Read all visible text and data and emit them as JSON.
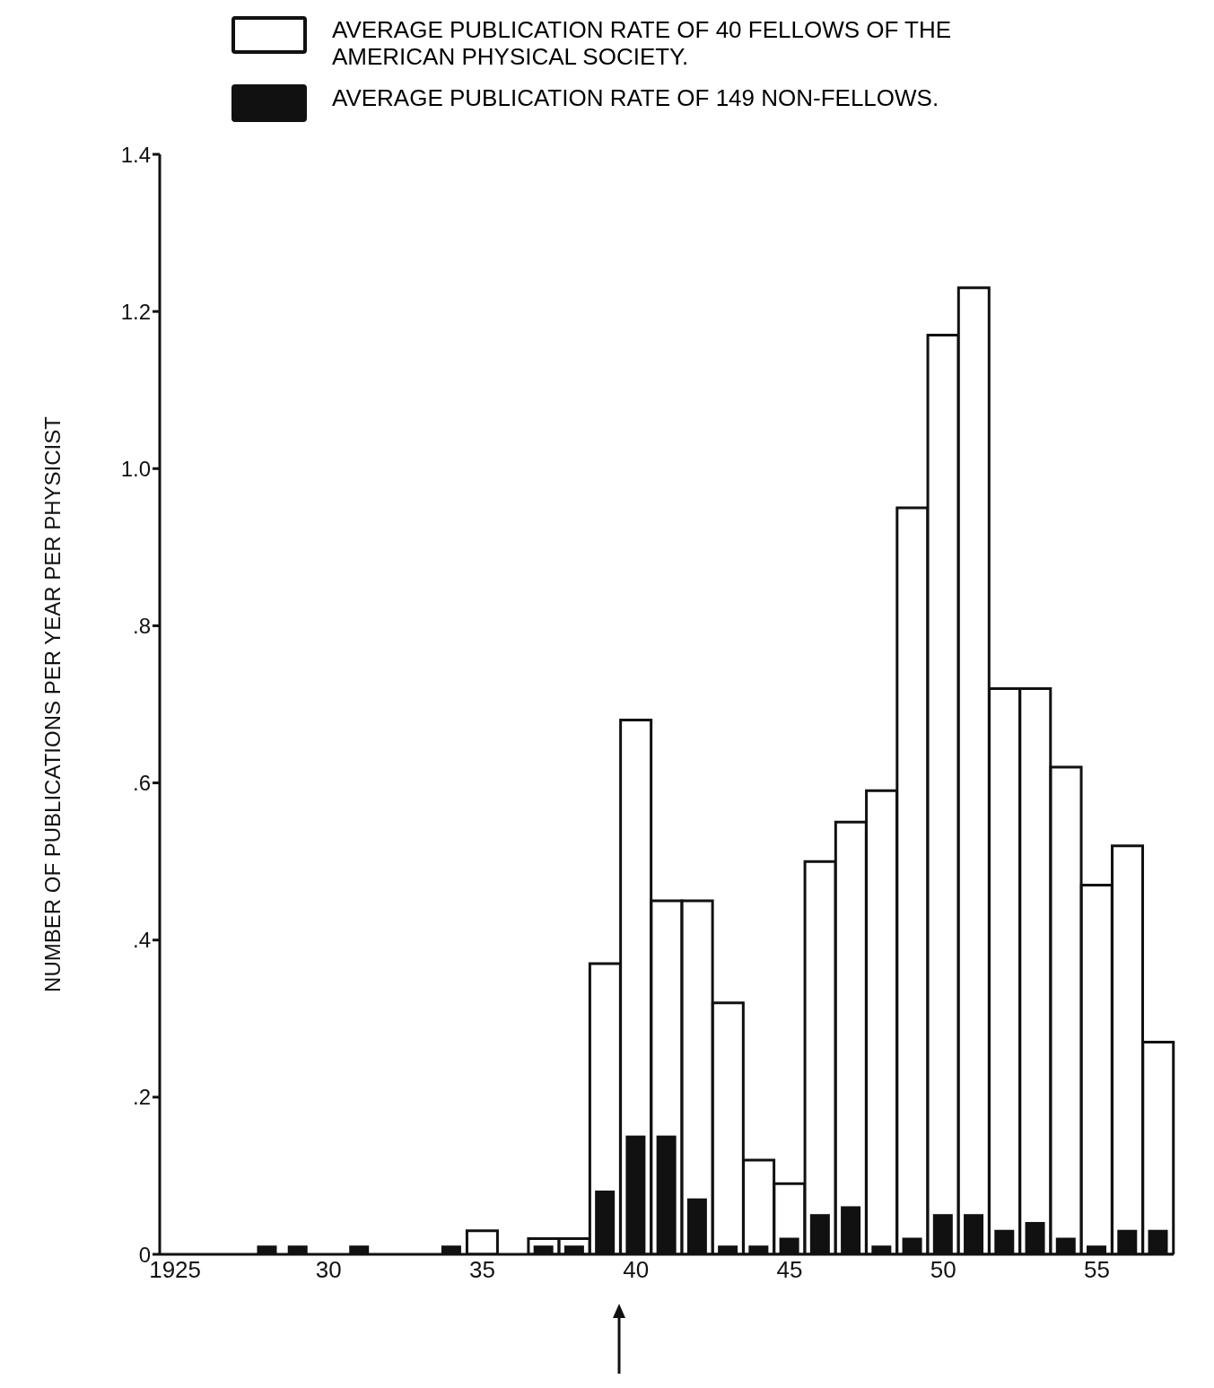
{
  "chart_data": {
    "type": "bar",
    "ylabel": "NUMBER OF PUBLICATIONS PER YEAR PER PHYSICIST",
    "categories": [
      "1925",
      null,
      null,
      null,
      null,
      "30",
      null,
      null,
      null,
      null,
      "35",
      null,
      null,
      null,
      null,
      "40",
      null,
      null,
      null,
      null,
      "45",
      null,
      null,
      null,
      null,
      "50",
      null,
      null,
      null,
      null,
      "55",
      null,
      null
    ],
    "series": [
      {
        "name": "AVERAGE PUBLICATION RATE OF 40 FELLOWS OF THE AMERICAN PHYSICAL SOCIETY.",
        "color": "#ffffff",
        "values": [
          null,
          null,
          null,
          null,
          null,
          null,
          null,
          null,
          null,
          null,
          0.03,
          null,
          0.02,
          0.02,
          0.37,
          0.68,
          0.45,
          0.45,
          0.32,
          0.12,
          0.09,
          0.5,
          0.55,
          0.59,
          0.95,
          1.17,
          1.23,
          0.72,
          0.72,
          0.62,
          0.47,
          0.52,
          0.27
        ]
      },
      {
        "name": "AVERAGE PUBLICATION RATE OF 149 NON-FELLOWS.",
        "color": "#111111",
        "values": [
          null,
          null,
          null,
          0.01,
          0.01,
          null,
          0.01,
          null,
          null,
          0.01,
          null,
          null,
          0.01,
          0.01,
          0.08,
          0.15,
          0.15,
          0.07,
          0.01,
          0.01,
          0.02,
          0.05,
          0.06,
          0.01,
          0.02,
          0.05,
          0.05,
          0.03,
          0.04,
          0.02,
          0.01,
          0.03,
          0.03
        ]
      }
    ],
    "ylim": [
      0,
      1.4
    ],
    "yticks": [
      {
        "value": 0,
        "label": "0"
      },
      {
        "value": 0.2,
        "label": ".2"
      },
      {
        "value": 0.4,
        "label": ".4"
      },
      {
        "value": 0.6,
        "label": ".6"
      },
      {
        "value": 0.8,
        "label": ".8"
      },
      {
        "value": 1,
        "label": "1.0"
      },
      {
        "value": 1.2,
        "label": "1.2"
      },
      {
        "value": 1.4,
        "label": "1.4"
      }
    ],
    "grid": false,
    "legend": "top"
  }
}
